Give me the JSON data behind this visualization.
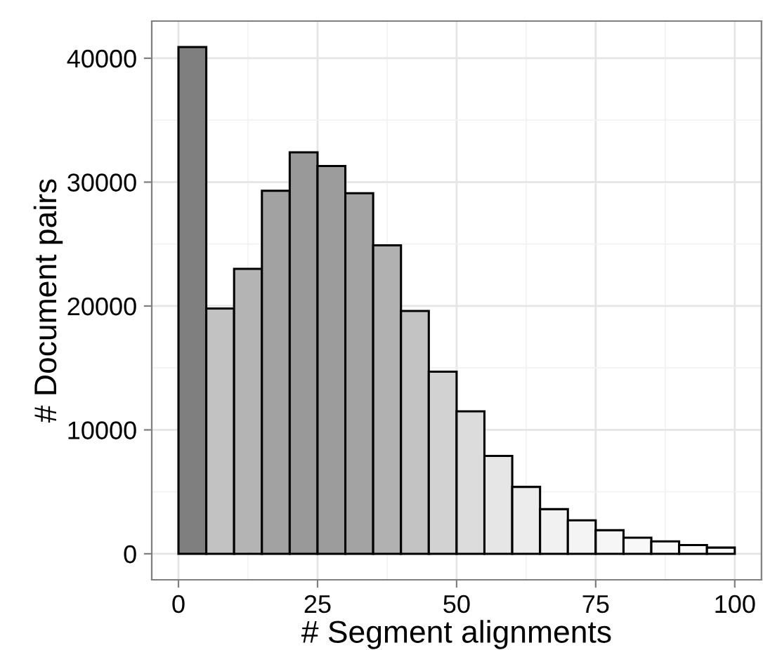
{
  "chart_data": {
    "type": "histogram",
    "xlabel": "# Segment alignments",
    "ylabel": "# Document pairs",
    "bins": [
      0,
      5,
      10,
      15,
      20,
      25,
      30,
      35,
      40,
      45,
      50,
      55,
      60,
      65,
      70,
      75,
      80,
      85,
      90,
      95,
      100
    ],
    "values": [
      40900,
      19800,
      23000,
      29300,
      32400,
      31300,
      29100,
      24900,
      19600,
      14700,
      11500,
      7900,
      5400,
      3600,
      2700,
      1900,
      1300,
      1000,
      700,
      500
    ],
    "colors": [
      "#7f7f7f",
      "#c2c2c2",
      "#b4b4b4",
      "#a2a2a2",
      "#999999",
      "#9c9c9c",
      "#a3a3a3",
      "#b1b1b1",
      "#c3c3c3",
      "#d2d2d2",
      "#dcdcdc",
      "#e6e6e6",
      "#ececec",
      "#f1f1f1",
      "#f4f4f4",
      "#f6f6f6",
      "#f8f8f8",
      "#f9f9f9",
      "#fafafa",
      "#fbfbfb"
    ],
    "xlim": [
      -4.8,
      104.8
    ],
    "ylim": [
      -2100,
      43000
    ],
    "xticks": [
      0,
      25,
      50,
      75,
      100
    ],
    "yticks": [
      0,
      10000,
      20000,
      30000,
      40000
    ],
    "grid": true
  }
}
